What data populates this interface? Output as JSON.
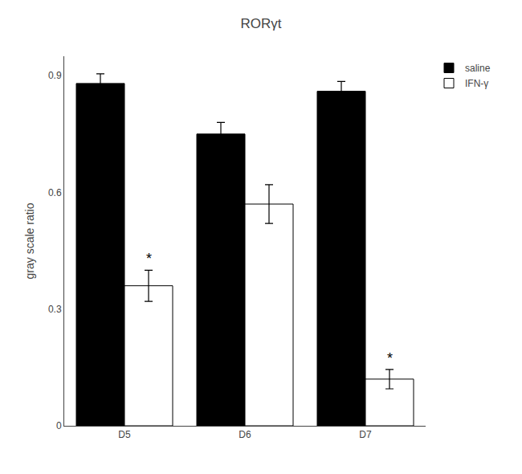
{
  "chart_data": {
    "type": "bar",
    "title": "RORγt",
    "y_label": "gray scale ratio",
    "categories": [
      "D5",
      "D6",
      "D7"
    ],
    "series": [
      {
        "name": "saline",
        "color": "#000000",
        "values": [
          0.88,
          0.75,
          0.86
        ],
        "errors": [
          0.025,
          0.03,
          0.025
        ]
      },
      {
        "name": "IFN-γ",
        "color": "#ffffff",
        "values": [
          0.36,
          0.57,
          0.12
        ],
        "errors": [
          0.04,
          0.05,
          0.025
        ]
      }
    ],
    "annotations": [
      {
        "text": "*",
        "category": "D5",
        "series": "IFN-γ"
      },
      {
        "text": "*",
        "category": "D7",
        "series": "IFN-γ"
      }
    ],
    "ylim": [
      0,
      0.95
    ],
    "yticks": [
      0,
      0.3,
      0.6,
      0.9
    ],
    "grid": false,
    "legend": "upper right"
  }
}
